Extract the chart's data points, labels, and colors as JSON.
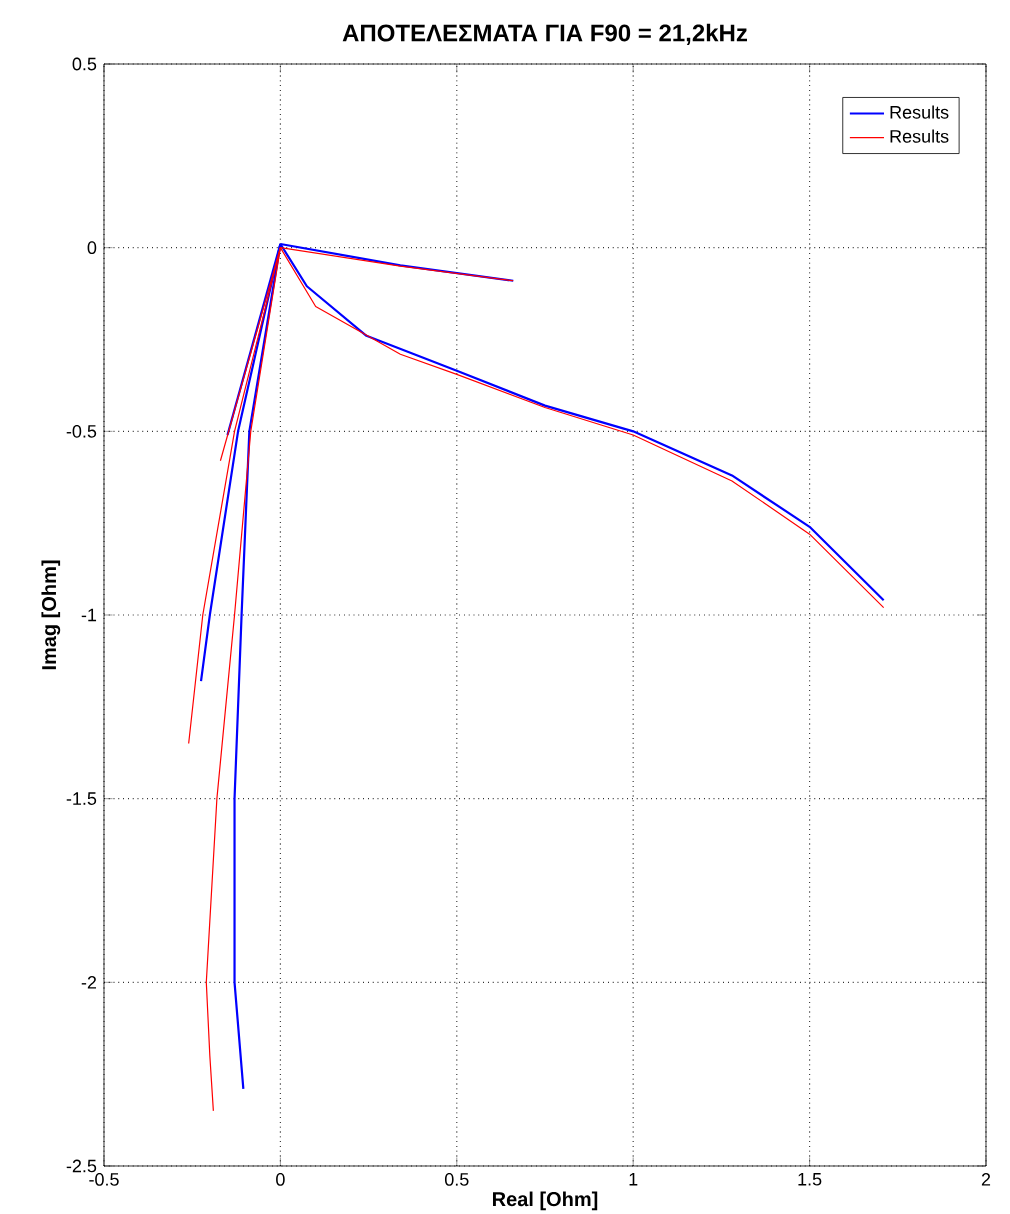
{
  "chart_data": {
    "type": "line",
    "title": "ΑΠΟΤΕΛΕΣΜΑΤΑ ΓΙΑ F90 = 21,2kHz",
    "xlabel": "Real [Ohm]",
    "ylabel": "Imag [Ohm]",
    "xlim": [
      -0.5,
      2
    ],
    "ylim": [
      -2.5,
      0.5
    ],
    "xticks": [
      -0.5,
      0,
      0.5,
      1,
      1.5,
      2
    ],
    "yticks": [
      -2.5,
      -2,
      -1.5,
      -1,
      -0.5,
      0,
      0.5
    ],
    "grid": true,
    "legend": "top right",
    "marker": "none",
    "line_style": "solid",
    "series": [
      {
        "name": "Results",
        "color": "#0000ff",
        "x": [
          0,
          0.075,
          0.244,
          0.5,
          0.75,
          1.0,
          1.28,
          1.5,
          1.71
        ],
        "values": [
          0.01,
          -0.105,
          -0.24,
          -0.335,
          -0.43,
          -0.5,
          -0.62,
          -0.76,
          -0.96
        ]
      },
      {
        "color": "#0000ff",
        "x": [
          0,
          0.34,
          0.66
        ],
        "values": [
          0.01,
          -0.048,
          -0.09
        ]
      },
      {
        "color": "#0000ff",
        "x": [
          0,
          -0.088,
          -0.11,
          -0.13,
          -0.13,
          -0.105
        ],
        "values": [
          0.01,
          -0.5,
          -1,
          -1.5,
          -2,
          -2.29
        ]
      },
      {
        "color": "#0000ff",
        "x": [
          0,
          -0.12,
          -0.2,
          -0.225
        ],
        "values": [
          0.01,
          -0.5,
          -1,
          -1.18
        ]
      },
      {
        "color": "#0000ff",
        "x": [
          0,
          -0.15
        ],
        "values": [
          0.01,
          -0.51
        ]
      },
      {
        "name": "Results",
        "color": "#ff0000",
        "x": [
          0,
          0.1,
          0.34,
          0.5,
          0.75,
          1.0,
          1.28,
          1.5,
          1.71
        ],
        "values": [
          0,
          -0.16,
          -0.29,
          -0.345,
          -0.435,
          -0.51,
          -0.635,
          -0.78,
          -0.98
        ]
      },
      {
        "color": "#ff0000",
        "x": [
          0,
          0.34,
          0.66
        ],
        "values": [
          0,
          -0.05,
          -0.09
        ]
      },
      {
        "color": "#ff0000",
        "x": [
          0,
          -0.084,
          -0.13,
          -0.18,
          -0.21,
          -0.2,
          -0.19
        ],
        "values": [
          0,
          -0.5,
          -1,
          -1.5,
          -2,
          -2.2,
          -2.35
        ]
      },
      {
        "color": "#ff0000",
        "x": [
          0,
          -0.13,
          -0.22,
          -0.26
        ],
        "values": [
          0,
          -0.5,
          -1,
          -1.35
        ]
      },
      {
        "color": "#ff0000",
        "x": [
          0,
          -0.17
        ],
        "values": [
          0,
          -0.58
        ]
      }
    ]
  }
}
